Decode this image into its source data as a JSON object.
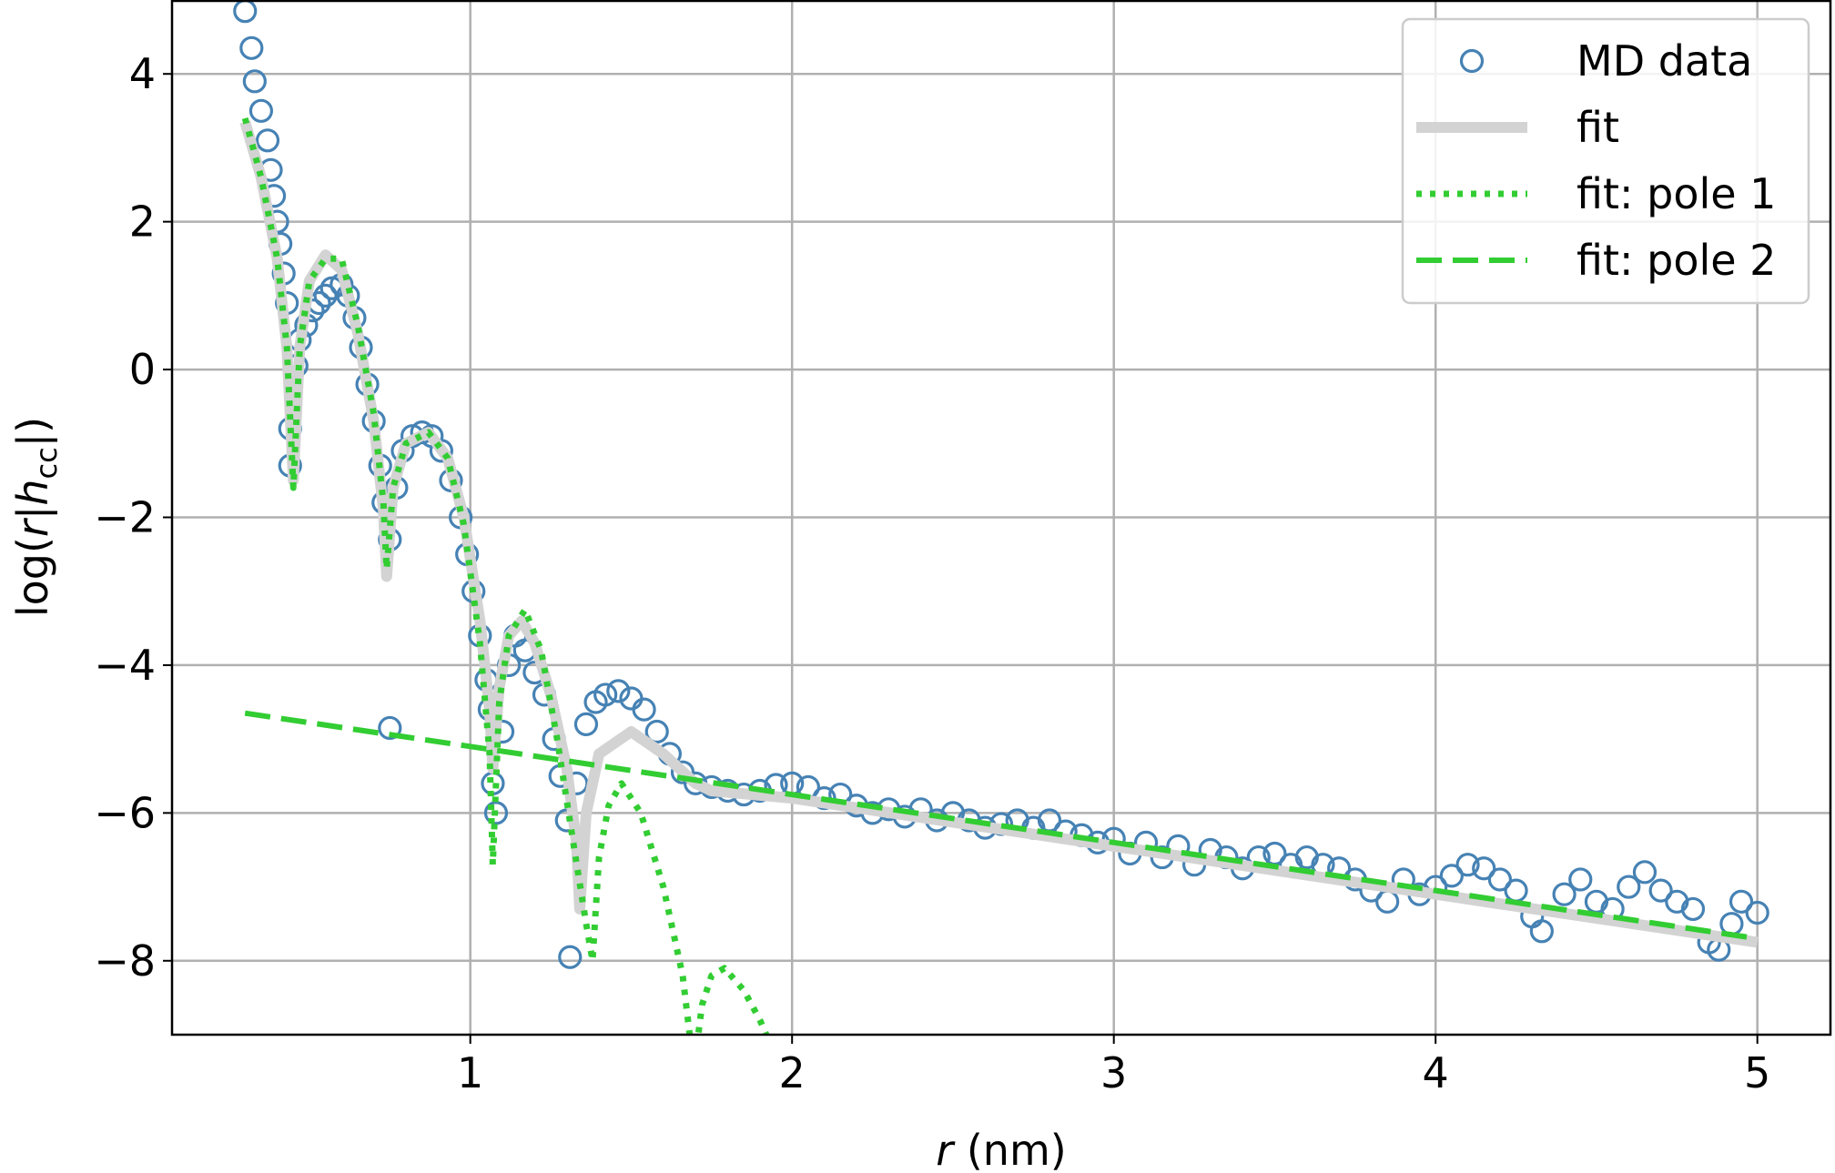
{
  "chart_data": {
    "type": "line",
    "xlabel": [
      "r",
      " (nm)"
    ],
    "ylabel": [
      "log(",
      "r",
      "|",
      "h",
      "cc",
      "|)"
    ],
    "xlim": [
      0.073,
      5.23
    ],
    "ylim": [
      -9,
      5
    ],
    "xticks": [
      1,
      2,
      3,
      4,
      5
    ],
    "yticks": [
      {
        "value": -8,
        "label": "−8"
      },
      {
        "value": -6,
        "label": "−6"
      },
      {
        "value": -4,
        "label": "−4"
      },
      {
        "value": -2,
        "label": "−2"
      },
      0,
      2,
      4
    ],
    "grid": true,
    "legend": "upper right",
    "series": [
      {
        "name": "MD data",
        "color": "#4682b4",
        "style": "marker",
        "x": [
          0.3,
          0.32,
          0.33,
          0.35,
          0.37,
          0.38,
          0.39,
          0.4,
          0.41,
          0.42,
          0.43,
          0.44,
          0.44,
          0.46,
          0.47,
          0.49,
          0.51,
          0.53,
          0.55,
          0.57,
          0.6,
          0.62,
          0.64,
          0.66,
          0.68,
          0.7,
          0.72,
          0.73,
          0.75,
          0.75,
          0.77,
          0.79,
          0.82,
          0.85,
          0.88,
          0.91,
          0.94,
          0.97,
          0.99,
          1.01,
          1.03,
          1.05,
          1.06,
          1.07,
          1.08,
          1.1,
          1.12,
          1.14,
          1.17,
          1.2,
          1.23,
          1.26,
          1.28,
          1.3,
          1.31,
          1.33,
          1.36,
          1.39,
          1.42,
          1.46,
          1.5,
          1.54,
          1.58,
          1.62,
          1.66,
          1.7,
          1.75,
          1.8,
          1.85,
          1.9,
          1.95,
          2.0,
          2.05,
          2.1,
          2.15,
          2.2,
          2.25,
          2.3,
          2.35,
          2.4,
          2.45,
          2.5,
          2.55,
          2.6,
          2.65,
          2.7,
          2.75,
          2.8,
          2.85,
          2.9,
          2.95,
          3.0,
          3.05,
          3.1,
          3.15,
          3.2,
          3.25,
          3.3,
          3.35,
          3.4,
          3.45,
          3.5,
          3.55,
          3.6,
          3.65,
          3.7,
          3.75,
          3.8,
          3.85,
          3.9,
          3.95,
          4.0,
          4.05,
          4.1,
          4.15,
          4.2,
          4.25,
          4.3,
          4.33,
          4.4,
          4.45,
          4.5,
          4.55,
          4.6,
          4.65,
          4.7,
          4.75,
          4.8,
          4.85,
          4.88,
          4.92,
          4.95,
          5.0
        ],
        "values": [
          4.85,
          4.35,
          3.9,
          3.5,
          3.1,
          2.7,
          2.35,
          2.0,
          1.7,
          1.3,
          0.9,
          -0.8,
          -1.3,
          0.05,
          0.4,
          0.6,
          0.8,
          0.9,
          1.0,
          1.1,
          1.15,
          1.0,
          0.7,
          0.3,
          -0.2,
          -0.7,
          -1.3,
          -1.8,
          -2.3,
          -4.85,
          -1.6,
          -1.1,
          -0.9,
          -0.85,
          -0.9,
          -1.1,
          -1.5,
          -2.0,
          -2.5,
          -3.0,
          -3.6,
          -4.2,
          -4.6,
          -5.6,
          -6.0,
          -4.9,
          -4.0,
          -3.6,
          -3.8,
          -4.1,
          -4.4,
          -5.0,
          -5.5,
          -6.1,
          -7.95,
          -5.6,
          -4.8,
          -4.5,
          -4.4,
          -4.35,
          -4.45,
          -4.6,
          -4.9,
          -5.2,
          -5.45,
          -5.6,
          -5.65,
          -5.7,
          -5.75,
          -5.7,
          -5.62,
          -5.6,
          -5.65,
          -5.8,
          -5.75,
          -5.9,
          -6.0,
          -5.95,
          -6.05,
          -5.95,
          -6.1,
          -6.0,
          -6.1,
          -6.2,
          -6.15,
          -6.1,
          -6.2,
          -6.1,
          -6.25,
          -6.3,
          -6.4,
          -6.35,
          -6.55,
          -6.4,
          -6.6,
          -6.45,
          -6.7,
          -6.5,
          -6.6,
          -6.75,
          -6.6,
          -6.55,
          -6.7,
          -6.6,
          -6.7,
          -6.75,
          -6.9,
          -7.05,
          -7.2,
          -6.9,
          -7.1,
          -7.0,
          -6.85,
          -6.7,
          -6.75,
          -6.9,
          -7.05,
          -7.4,
          -7.6,
          -7.1,
          -6.9,
          -7.2,
          -7.3,
          -7.0,
          -6.8,
          -7.05,
          -7.2,
          -7.3,
          -7.75,
          -7.85,
          -7.5,
          -7.2,
          -7.35
        ]
      },
      {
        "name": "fit",
        "color": "#d3d3d3",
        "style": "solid",
        "x": [
          0.3,
          0.35,
          0.4,
          0.43,
          0.45,
          0.47,
          0.5,
          0.55,
          0.6,
          0.65,
          0.7,
          0.73,
          0.74,
          0.76,
          0.8,
          0.87,
          0.93,
          0.98,
          1.03,
          1.06,
          1.07,
          1.09,
          1.12,
          1.16,
          1.2,
          1.25,
          1.3,
          1.33,
          1.34,
          1.36,
          1.4,
          1.5,
          1.6,
          1.7,
          1.75,
          2.0,
          3.0,
          4.0,
          5.0
        ],
        "values": [
          3.35,
          2.6,
          1.5,
          0.3,
          -1.5,
          0.3,
          1.2,
          1.55,
          1.35,
          0.5,
          -0.7,
          -1.9,
          -2.8,
          -1.6,
          -1.0,
          -0.85,
          -1.2,
          -2.0,
          -3.4,
          -4.6,
          -5.4,
          -4.3,
          -3.6,
          -3.4,
          -3.7,
          -4.4,
          -5.4,
          -6.4,
          -7.3,
          -6.0,
          -5.2,
          -4.9,
          -5.2,
          -5.6,
          -5.7,
          -5.8,
          -6.45,
          -7.1,
          -7.75
        ]
      },
      {
        "name": "fit: pole 1",
        "color": "#32cd32",
        "style": "dotted",
        "x": [
          0.3,
          0.35,
          0.4,
          0.43,
          0.45,
          0.47,
          0.5,
          0.55,
          0.6,
          0.65,
          0.7,
          0.73,
          0.74,
          0.76,
          0.8,
          0.87,
          0.93,
          0.98,
          1.03,
          1.06,
          1.07,
          1.09,
          1.12,
          1.17,
          1.22,
          1.27,
          1.32,
          1.36,
          1.38,
          1.4,
          1.43,
          1.47,
          1.53,
          1.6,
          1.66,
          1.69,
          1.7,
          1.72,
          1.75,
          1.79,
          1.85,
          1.9,
          1.95
        ],
        "values": [
          3.4,
          2.6,
          1.5,
          0.3,
          -1.6,
          0.3,
          1.2,
          1.5,
          1.5,
          0.6,
          -0.6,
          -1.8,
          -2.7,
          -1.6,
          -1.0,
          -0.85,
          -1.2,
          -2.1,
          -3.7,
          -5.2,
          -6.7,
          -4.5,
          -3.6,
          -3.25,
          -3.8,
          -5.0,
          -6.4,
          -7.5,
          -8.0,
          -6.6,
          -5.9,
          -5.6,
          -6.0,
          -7.0,
          -8.2,
          -9.3,
          -9.3,
          -8.6,
          -8.2,
          -8.1,
          -8.4,
          -8.8,
          -9.3
        ]
      },
      {
        "name": "fit: pole 2",
        "color": "#32cd32",
        "style": "dashed",
        "x": [
          0.3,
          1,
          2,
          3,
          4,
          5
        ],
        "values": [
          -4.65,
          -5.1,
          -5.75,
          -6.4,
          -7.05,
          -7.7
        ]
      }
    ]
  }
}
